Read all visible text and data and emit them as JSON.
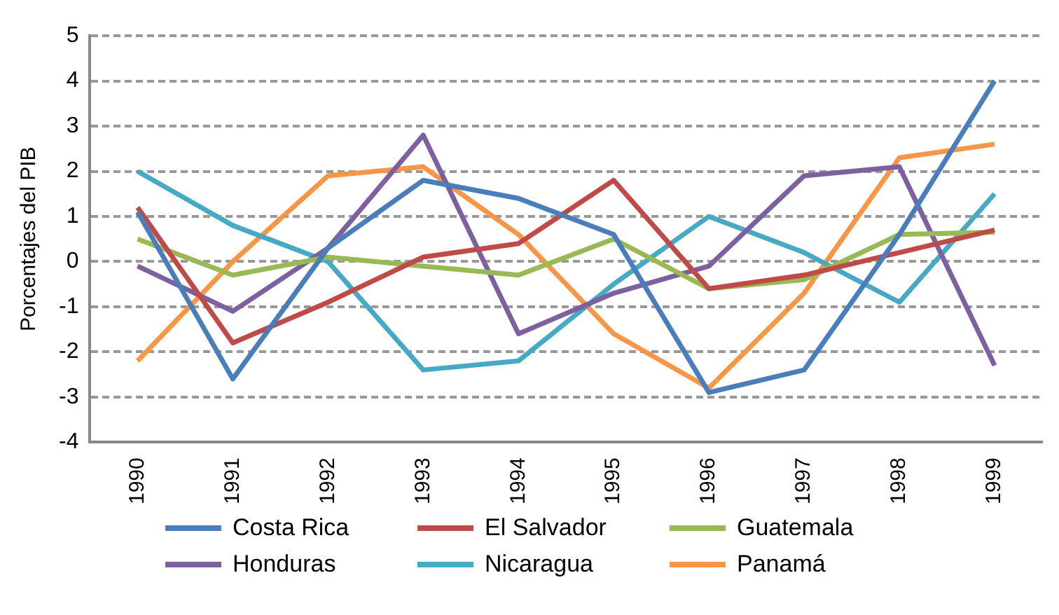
{
  "chart_data": {
    "type": "line",
    "ylabel": "Porcentajes del PIB",
    "categories": [
      "1990",
      "1991",
      "1992",
      "1993",
      "1994",
      "1995",
      "1996",
      "1997",
      "1998",
      "1999"
    ],
    "ylim": [
      -4,
      5
    ],
    "yticks": [
      -4,
      -3,
      -2,
      -1,
      0,
      1,
      2,
      3,
      4,
      5
    ],
    "grid": "y",
    "legend": "bottom",
    "marker": "none",
    "line_style": "solid",
    "series": [
      {
        "name": "Costa Rica",
        "color": "#4a7ebb",
        "values": [
          1.1,
          -2.6,
          0.3,
          1.8,
          1.4,
          0.6,
          -2.9,
          -2.4,
          0.6,
          4.0
        ]
      },
      {
        "name": "El Salvador",
        "color": "#be4b48",
        "values": [
          1.2,
          -1.8,
          -0.9,
          0.1,
          0.4,
          1.8,
          -0.6,
          -0.3,
          0.2,
          0.7
        ]
      },
      {
        "name": "Guatemala",
        "color": "#98b954",
        "values": [
          0.5,
          -0.3,
          0.1,
          -0.1,
          -0.3,
          0.5,
          -0.6,
          -0.4,
          0.6,
          0.65
        ]
      },
      {
        "name": "Honduras",
        "color": "#7d60a0",
        "values": [
          -0.1,
          -1.1,
          0.3,
          2.8,
          -1.6,
          -0.7,
          -0.1,
          1.9,
          2.1,
          -2.3
        ]
      },
      {
        "name": "Nicaragua",
        "color": "#46aac5",
        "values": [
          2.0,
          0.8,
          0.0,
          -2.4,
          -2.2,
          -0.5,
          1.0,
          0.2,
          -0.9,
          1.5
        ]
      },
      {
        "name": "Panamá",
        "color": "#f79646",
        "values": [
          -2.2,
          0.0,
          1.9,
          2.1,
          0.6,
          -1.6,
          -2.8,
          -0.7,
          2.3,
          2.6
        ]
      }
    ]
  }
}
